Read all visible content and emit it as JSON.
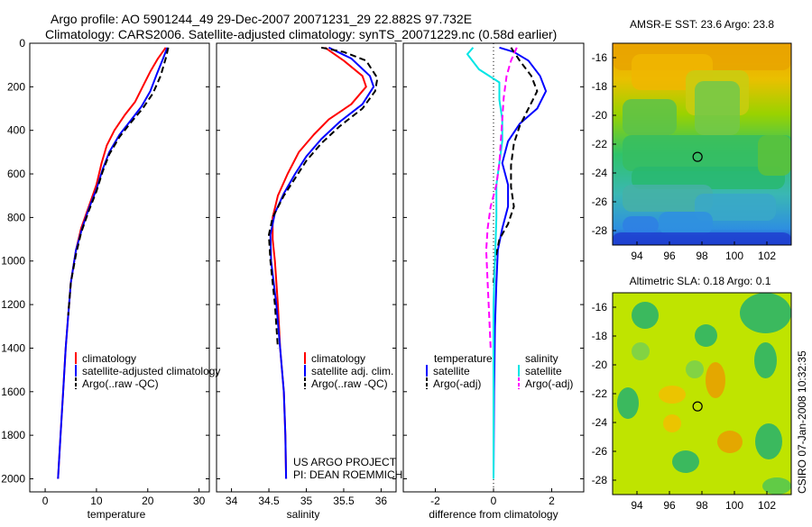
{
  "title_line1": "Argo profile: AO 5901244_49 29-Dec-2007 20071231_29 22.882S 97.732E",
  "title_line2": "Climatology: CARS2006. Satellite-adjusted climatology: synTS_20071229.nc (0.58d earlier)",
  "credit_vertical": "CSIRO 07-Jan-2008 10:32:35",
  "chart_data": [
    {
      "type": "line",
      "xlabel": "temperature",
      "ylabel": "",
      "xlim": [
        -3,
        32
      ],
      "ylim": [
        0,
        2060
      ],
      "y_inverted": true,
      "xticks": [
        0,
        10,
        20,
        30
      ],
      "yticks": [
        0,
        200,
        400,
        600,
        800,
        1000,
        1200,
        1400,
        1600,
        1800,
        2000
      ],
      "legend": [
        "climatology",
        "satellite-adjusted climatology",
        "Argo(..raw -QC)"
      ],
      "series": [
        {
          "name": "climatology",
          "color": "#ff0000",
          "dash": "solid",
          "points": [
            [
              23.5,
              20
            ],
            [
              22,
              70
            ],
            [
              20.5,
              130
            ],
            [
              19,
              200
            ],
            [
              17.5,
              270
            ],
            [
              15.5,
              330
            ],
            [
              13.5,
              400
            ],
            [
              12,
              470
            ],
            [
              11,
              550
            ],
            [
              10,
              650
            ],
            [
              8.5,
              750
            ],
            [
              7,
              850
            ],
            [
              6,
              950
            ],
            [
              5,
              1100
            ],
            [
              4.5,
              1250
            ],
            [
              4,
              1400
            ],
            [
              3.5,
              1600
            ],
            [
              3,
              1800
            ],
            [
              2.5,
              2000
            ]
          ]
        },
        {
          "name": "satellite-adjusted climatology",
          "color": "#0000ff",
          "dash": "solid",
          "points": [
            [
              23.8,
              20
            ],
            [
              23,
              70
            ],
            [
              21.8,
              140
            ],
            [
              20.5,
              220
            ],
            [
              18.8,
              290
            ],
            [
              16.5,
              360
            ],
            [
              14.5,
              420
            ],
            [
              12.5,
              500
            ],
            [
              11.2,
              580
            ],
            [
              10,
              670
            ],
            [
              8.5,
              760
            ],
            [
              7.2,
              850
            ],
            [
              6,
              950
            ],
            [
              5,
              1100
            ],
            [
              4.5,
              1250
            ],
            [
              4,
              1400
            ],
            [
              3.5,
              1600
            ],
            [
              3,
              1800
            ],
            [
              2.5,
              2000
            ]
          ]
        },
        {
          "name": "Argo(..raw -QC)",
          "color": "#000000",
          "dash": "dash",
          "points": [
            [
              24,
              20
            ],
            [
              23.5,
              70
            ],
            [
              22.5,
              150
            ],
            [
              21,
              230
            ],
            [
              19,
              300
            ],
            [
              16.5,
              370
            ],
            [
              14.5,
              430
            ],
            [
              12.5,
              510
            ],
            [
              11.2,
              590
            ],
            [
              10,
              680
            ],
            [
              8.5,
              770
            ],
            [
              7,
              870
            ],
            [
              6,
              970
            ],
            [
              5,
              1100
            ],
            [
              4.5,
              1250
            ]
          ]
        }
      ]
    },
    {
      "type": "line",
      "xlabel": "salinity",
      "ylabel": "",
      "xlim": [
        33.8,
        36.2
      ],
      "ylim": [
        0,
        2060
      ],
      "y_inverted": true,
      "xticks": [
        34,
        34.5,
        35,
        35.5,
        36
      ],
      "legend": [
        "climatology",
        "satellite adj. clim.",
        "Argo(..raw -QC)"
      ],
      "series": [
        {
          "name": "climatology",
          "color": "#ff0000",
          "dash": "solid",
          "points": [
            [
              35.25,
              20
            ],
            [
              35.5,
              80
            ],
            [
              35.75,
              150
            ],
            [
              35.8,
              200
            ],
            [
              35.6,
              280
            ],
            [
              35.3,
              350
            ],
            [
              35.1,
              420
            ],
            [
              34.9,
              500
            ],
            [
              34.75,
              600
            ],
            [
              34.62,
              700
            ],
            [
              34.55,
              800
            ],
            [
              34.55,
              900
            ],
            [
              34.58,
              1000
            ],
            [
              34.62,
              1200
            ],
            [
              34.65,
              1400
            ],
            [
              34.7,
              1600
            ],
            [
              34.72,
              1800
            ],
            [
              34.73,
              2000
            ]
          ]
        },
        {
          "name": "satellite adj. clim.",
          "color": "#0000ff",
          "dash": "solid",
          "points": [
            [
              35.3,
              20
            ],
            [
              35.6,
              70
            ],
            [
              35.85,
              150
            ],
            [
              35.9,
              200
            ],
            [
              35.75,
              280
            ],
            [
              35.45,
              360
            ],
            [
              35.2,
              440
            ],
            [
              35.0,
              520
            ],
            [
              34.85,
              600
            ],
            [
              34.7,
              690
            ],
            [
              34.58,
              780
            ],
            [
              34.52,
              880
            ],
            [
              34.53,
              1000
            ],
            [
              34.6,
              1200
            ],
            [
              34.65,
              1400
            ],
            [
              34.7,
              1600
            ],
            [
              34.72,
              1800
            ],
            [
              34.73,
              2000
            ]
          ]
        },
        {
          "name": "Argo(..raw -QC)",
          "color": "#000000",
          "dash": "dash",
          "points": [
            [
              35.2,
              20
            ],
            [
              35.5,
              40
            ],
            [
              35.8,
              80
            ],
            [
              35.95,
              160
            ],
            [
              35.92,
              220
            ],
            [
              35.75,
              300
            ],
            [
              35.45,
              380
            ],
            [
              35.2,
              460
            ],
            [
              35.0,
              540
            ],
            [
              34.85,
              620
            ],
            [
              34.7,
              700
            ],
            [
              34.55,
              800
            ],
            [
              34.5,
              880
            ],
            [
              34.52,
              1000
            ],
            [
              34.58,
              1200
            ],
            [
              34.62,
              1400
            ]
          ]
        }
      ]
    },
    {
      "type": "line",
      "xlabel": "difference from climatology",
      "ylabel": "",
      "xlim": [
        -3.1,
        3.1
      ],
      "ylim": [
        0,
        2060
      ],
      "y_inverted": true,
      "xticks": [
        -2,
        0,
        2
      ],
      "legend_headers": [
        "temperature",
        "salinity"
      ],
      "legend": [
        "satellite",
        "Argo(-adj)",
        "satellite",
        "Argo(-adj)"
      ],
      "series": [
        {
          "name": "satellite",
          "group": "temperature",
          "color": "#0000ff",
          "dash": "solid",
          "points": [
            [
              0.2,
              20
            ],
            [
              0.7,
              40
            ],
            [
              1.2,
              80
            ],
            [
              1.6,
              150
            ],
            [
              1.8,
              220
            ],
            [
              1.5,
              300
            ],
            [
              0.9,
              370
            ],
            [
              0.5,
              450
            ],
            [
              0.3,
              550
            ],
            [
              0.5,
              650
            ],
            [
              0.5,
              750
            ],
            [
              0.3,
              850
            ],
            [
              0.15,
              950
            ],
            [
              0.1,
              1100
            ],
            [
              0.05,
              1300
            ],
            [
              0.02,
              1600
            ],
            [
              0.0,
              2000
            ]
          ]
        },
        {
          "name": "Argo(-adj)",
          "group": "temperature",
          "color": "#000000",
          "dash": "dash",
          "points": [
            [
              0.6,
              20
            ],
            [
              0.9,
              80
            ],
            [
              1.3,
              150
            ],
            [
              1.5,
              220
            ],
            [
              1.2,
              300
            ],
            [
              0.9,
              380
            ],
            [
              0.7,
              460
            ],
            [
              0.6,
              560
            ],
            [
              0.6,
              660
            ],
            [
              0.7,
              750
            ],
            [
              0.5,
              830
            ],
            [
              0.2,
              900
            ],
            [
              0.05,
              1000
            ],
            [
              0.0,
              1100
            ]
          ]
        },
        {
          "name": "satellite",
          "group": "salinity",
          "color": "#00e5e5",
          "dash": "solid",
          "points": [
            [
              -0.7,
              20
            ],
            [
              -0.9,
              50
            ],
            [
              -0.5,
              120
            ],
            [
              0.2,
              180
            ],
            [
              0.2,
              260
            ],
            [
              0.3,
              350
            ],
            [
              0.3,
              450
            ],
            [
              0.2,
              550
            ],
            [
              0.1,
              650
            ],
            [
              0.1,
              800
            ],
            [
              0.05,
              1000
            ],
            [
              0.0,
              1200
            ],
            [
              0.0,
              1500
            ],
            [
              0.0,
              1800
            ],
            [
              0.0,
              2000
            ]
          ]
        },
        {
          "name": "Argo(-adj)",
          "group": "salinity",
          "color": "#ff00ff",
          "dash": "dash",
          "points": [
            [
              0.8,
              20
            ],
            [
              0.6,
              80
            ],
            [
              0.45,
              150
            ],
            [
              0.35,
              250
            ],
            [
              0.3,
              350
            ],
            [
              0.25,
              450
            ],
            [
              0.2,
              550
            ],
            [
              0.1,
              650
            ],
            [
              -0.1,
              750
            ],
            [
              -0.2,
              850
            ],
            [
              -0.25,
              950
            ],
            [
              -0.2,
              1100
            ],
            [
              -0.15,
              1250
            ],
            [
              -0.1,
              1400
            ]
          ]
        }
      ]
    },
    {
      "type": "heatmap",
      "title": "AMSR-E SST: 23.6 Argo: 23.8",
      "xlim": [
        92.5,
        103.5
      ],
      "ylim": [
        -29,
        -15
      ],
      "xticks": [
        94,
        96,
        98,
        100,
        102
      ],
      "yticks": [
        -16,
        -18,
        -20,
        -22,
        -24,
        -26,
        -28
      ],
      "marker": {
        "x": 97.732,
        "y": -22.882
      }
    },
    {
      "type": "heatmap",
      "title": "Altimetric SLA: 0.18 Argo: 0.1",
      "xlim": [
        92.5,
        103.5
      ],
      "ylim": [
        -29,
        -15
      ],
      "xticks": [
        94,
        96,
        98,
        100,
        102
      ],
      "yticks": [
        -16,
        -18,
        -20,
        -22,
        -24,
        -26,
        -28
      ],
      "marker": {
        "x": 97.732,
        "y": -22.882
      }
    }
  ],
  "annotation": {
    "line1": "US ARGO PROJECT",
    "line2": "PI: DEAN ROEMMICH"
  }
}
